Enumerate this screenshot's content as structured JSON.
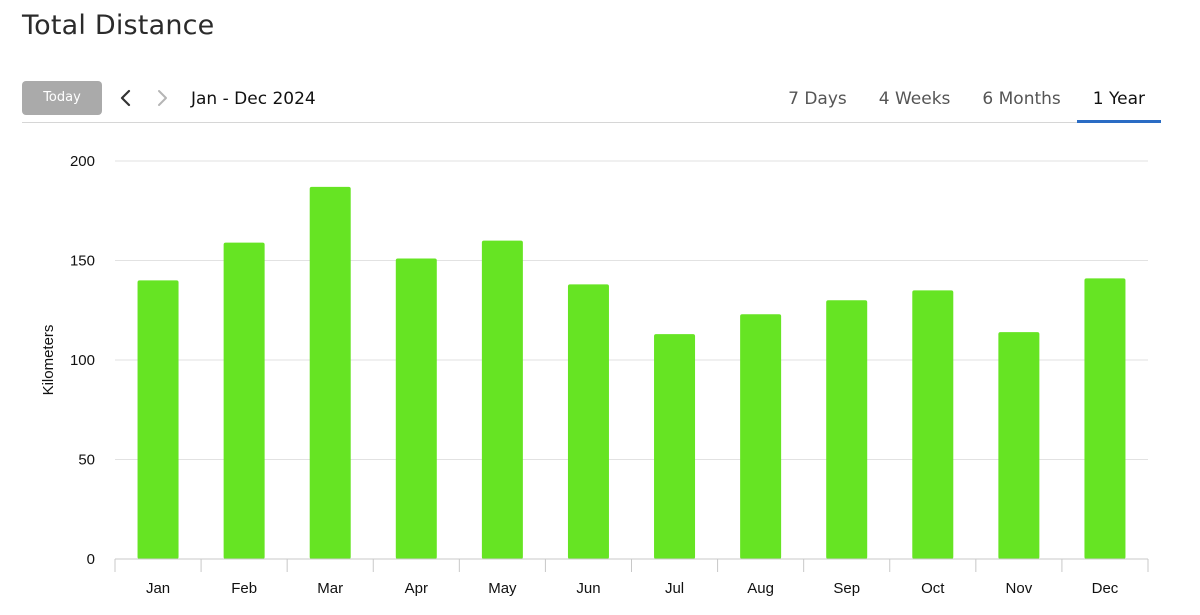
{
  "page": {
    "title": "Total Distance"
  },
  "toolbar": {
    "today_label": "Today",
    "date_range": "Jan - Dec 2024",
    "tabs": [
      {
        "label": "7 Days",
        "active": false
      },
      {
        "label": "4 Weeks",
        "active": false
      },
      {
        "label": "6 Months",
        "active": false
      },
      {
        "label": "1 Year",
        "active": true
      }
    ]
  },
  "colors": {
    "bar": "#66e423",
    "grid": "#e2e2e2",
    "axis": "#c8c8c8",
    "active_tab_underline": "#2a6cc4",
    "today_button": "#aaaaaa"
  },
  "icons": {
    "prev": "chevron-left-icon",
    "next": "chevron-right-icon"
  },
  "chart_data": {
    "type": "bar",
    "categories": [
      "Jan",
      "Feb",
      "Mar",
      "Apr",
      "May",
      "Jun",
      "Jul",
      "Aug",
      "Sep",
      "Oct",
      "Nov",
      "Dec"
    ],
    "values": [
      140,
      159,
      187,
      151,
      160,
      138,
      113,
      123,
      130,
      135,
      114,
      141
    ],
    "xlabel": "",
    "ylabel": "Kilometers",
    "ylim": [
      0,
      200
    ],
    "yticks": [
      0,
      50,
      100,
      150,
      200
    ],
    "grid": true,
    "legend": "none"
  }
}
